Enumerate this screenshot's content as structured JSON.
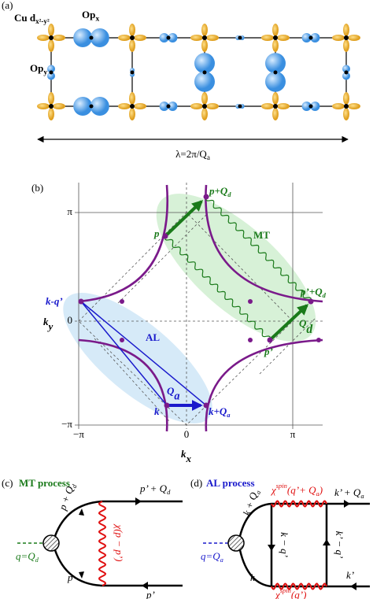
{
  "panel_a": {
    "label": "(a)",
    "cu_label": {
      "element": "Cu ",
      "orbital": "d",
      "sub": "x²-y²"
    },
    "opx_label": {
      "text": "Op",
      "sub": "x"
    },
    "opy_label": {
      "text": "Op",
      "sub": "y"
    },
    "wavelength": {
      "text": "λ=2π/Q",
      "sub": "a"
    }
  },
  "panel_b": {
    "label": "(b)",
    "x_axis_label": {
      "text": "k",
      "sub": "x"
    },
    "y_axis_label": {
      "text": "k",
      "sub": "y"
    },
    "x_ticks": [
      "−π",
      "0",
      "π"
    ],
    "y_ticks": [
      "π",
      "0",
      "−π"
    ],
    "points": {
      "p_plus_qd": {
        "text": "p+Q",
        "sub": "d"
      },
      "p": "p",
      "p_prime_plus_qd": {
        "text": "p’+Q",
        "sub": "d"
      },
      "p_prime": "p’",
      "k_minus_q_prime": "k-q’",
      "k": "k",
      "k_plus_qa": {
        "text": "k+Q",
        "sub": "a"
      }
    },
    "regions": {
      "mt": "MT",
      "al": "AL"
    },
    "vectors": {
      "qd": {
        "text": "Q",
        "sub": "d"
      },
      "qa": {
        "text": "Q",
        "sub": "a"
      }
    }
  },
  "panel_c": {
    "label": "(c)",
    "title": "MT process",
    "top_out": {
      "text": "p’ + Q",
      "sub": "d"
    },
    "top_in": {
      "text": "p + Q",
      "sub": "d"
    },
    "boson": {
      "text": "q=Q",
      "sub": "d"
    },
    "bottom_in": "p",
    "bottom_out": "p’",
    "propagator": "χ(p − p’)"
  },
  "panel_d": {
    "label": "(d)",
    "title": "AL process",
    "top_propagator": {
      "symbol": "χ",
      "sup": "spin",
      "arg": "(q’+ Q",
      "sub": "a",
      "close": ")"
    },
    "bottom_propagator": {
      "symbol": "χ",
      "sup": "spin",
      "arg": "(q’)"
    },
    "top_out": {
      "text": "k’ + Q",
      "sub": "a"
    },
    "top_in": {
      "text": "k + Q",
      "sub": "a"
    },
    "left_rung": "k − q’",
    "right_rung": "k’ − q’",
    "boson": {
      "text": "q=Q",
      "sub": "a"
    },
    "bottom_in": "k",
    "bottom_out": "k’"
  }
}
